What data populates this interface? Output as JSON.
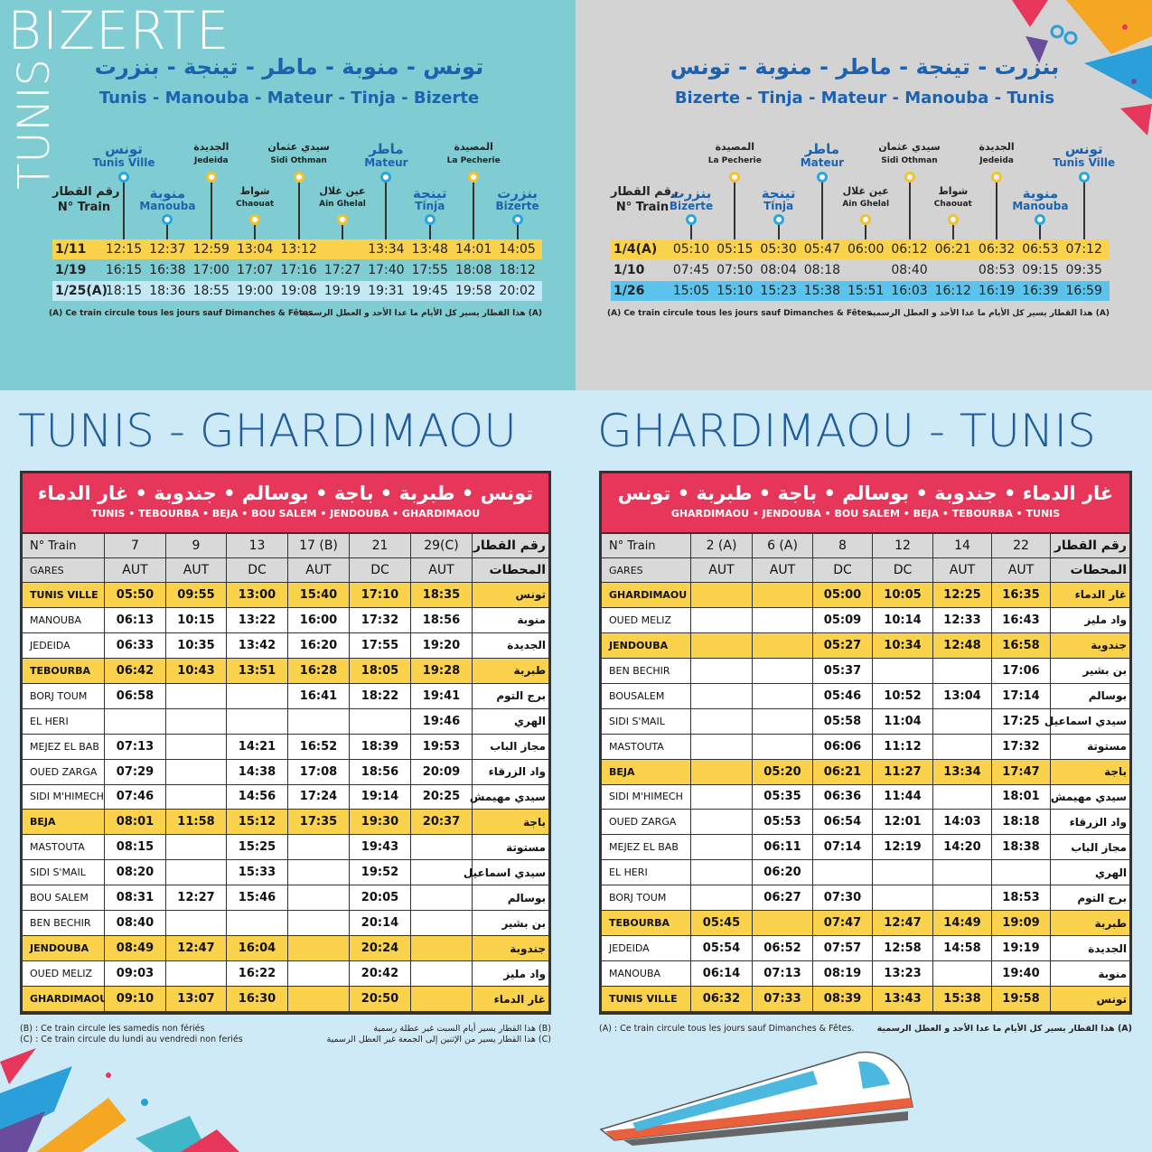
{
  "tunis_bizerte": {
    "title": "BIZERTE",
    "title_vertical": "TUNIS",
    "title_ar": "تونس - منوبة - ماطر - تينجة - بنزرت",
    "title_latin": "Tunis - Manouba - Mateur - Tinja - Bizerte",
    "train_label_ar": "رقم القطار",
    "train_label": "N° Train",
    "stations": [
      {
        "ar": "تونس",
        "name": "Tunis Ville"
      },
      {
        "ar": "منوبة",
        "name": "Manouba"
      },
      {
        "ar": "الجديدة",
        "name": "Jedeida"
      },
      {
        "ar": "شواط",
        "name": "Chaouat"
      },
      {
        "ar": "سيدي عثمان",
        "name": "Sidi Othman"
      },
      {
        "ar": "عين غلال",
        "name": "Ain Ghelal"
      },
      {
        "ar": "ماطر",
        "name": "Mateur"
      },
      {
        "ar": "تينجة",
        "name": "Tinja"
      },
      {
        "ar": "المصيدة",
        "name": "La Pecherie"
      },
      {
        "ar": "بنزرت",
        "name": "Bizerte"
      }
    ],
    "trains": [
      {
        "id": "1/11",
        "times": [
          "12:15",
          "12:37",
          "12:59",
          "13:04",
          "13:12",
          null,
          "13:34",
          "13:48",
          "14:01",
          "14:05"
        ]
      },
      {
        "id": "1/19",
        "times": [
          "16:15",
          "16:38",
          "17:00",
          "17:07",
          "17:16",
          "17:27",
          "17:40",
          "17:55",
          "18:08",
          "18:12"
        ]
      },
      {
        "id": "1/25(A)",
        "times": [
          "18:15",
          "18:36",
          "18:55",
          "19:00",
          "19:08",
          "19:19",
          "19:31",
          "19:45",
          "19:58",
          "20:02"
        ]
      }
    ],
    "note": "(A) Ce train circule tous les jours sauf Dimanches & Fêtes.",
    "note_ar": "(A) هذا القطار يسير كل الأيام ما عدا الأحد و العطل الرسمية"
  },
  "bizerte_tunis": {
    "title_ar": "بنزرت - تينجة - ماطر - منوبة - تونس",
    "title_latin": "Bizerte - Tinja - Mateur - Manouba - Tunis",
    "train_label_ar": "رقم القطار",
    "train_label": "N° Train",
    "stations": [
      {
        "ar": "بنزرت",
        "name": "Bizerte"
      },
      {
        "ar": "المصيدة",
        "name": "La Pecherie"
      },
      {
        "ar": "تينجة",
        "name": "Tinja"
      },
      {
        "ar": "ماطر",
        "name": "Mateur"
      },
      {
        "ar": "عين غلال",
        "name": "Ain Ghelal"
      },
      {
        "ar": "سيدي عثمان",
        "name": "Sidi Othman"
      },
      {
        "ar": "شواط",
        "name": "Chaouat"
      },
      {
        "ar": "الجديدة",
        "name": "Jedeida"
      },
      {
        "ar": "منوبة",
        "name": "Manouba"
      },
      {
        "ar": "تونس",
        "name": "Tunis Ville"
      }
    ],
    "trains": [
      {
        "id": "1/4(A)",
        "times": [
          "05:10",
          "05:15",
          "05:30",
          "05:47",
          "06:00",
          "06:12",
          "06:21",
          "06:32",
          "06:53",
          "07:12"
        ]
      },
      {
        "id": "1/10",
        "times": [
          "07:45",
          "07:50",
          "08:04",
          "08:18",
          null,
          "08:40",
          null,
          "08:53",
          "09:15",
          "09:35"
        ]
      },
      {
        "id": "1/26",
        "times": [
          "15:05",
          "15:10",
          "15:23",
          "15:38",
          "15:51",
          "16:03",
          "16:12",
          "16:19",
          "16:39",
          "16:59"
        ]
      }
    ],
    "note": "(A) Ce train circule tous les jours sauf Dimanches & Fêtes.",
    "note_ar": "(A) هذا القطار يسير كل الأيام ما عدا الأحد و العطل الرسمية"
  },
  "tunis_ghardimaou": {
    "title": "TUNIS - GHARDIMAOU",
    "header_ar": "تونس • طبربة • باجة • بوسالم • جندوبة • غار الدماء",
    "header_latin": "TUNIS • TEBOURBA • BEJA • BOU SALEM • JENDOUBA • GHARDIMAOU",
    "train_label": "N° Train",
    "train_label_ar": "رقم القطار",
    "gares_label": "GARES",
    "gares_label_ar": "المحطات",
    "trains": [
      "7",
      "9",
      "13",
      "17 (B)",
      "21",
      "29(C)"
    ],
    "types": [
      "AUT",
      "AUT",
      "DC",
      "AUT",
      "DC",
      "AUT"
    ],
    "rows": [
      {
        "name": "TUNIS VILLE",
        "times": [
          "05:50",
          "09:55",
          "13:00",
          "15:40",
          "17:10",
          "18:35"
        ],
        "name_ar": "تونس"
      },
      {
        "name": "MANOUBA",
        "times": [
          "06:13",
          "10:15",
          "13:22",
          "16:00",
          "17:32",
          "18:56"
        ],
        "name_ar": "منوبة"
      },
      {
        "name": "JEDEIDA",
        "times": [
          "06:33",
          "10:35",
          "13:42",
          "16:20",
          "17:55",
          "19:20"
        ],
        "name_ar": "الجديدة"
      },
      {
        "name": "TEBOURBA",
        "times": [
          "06:42",
          "10:43",
          "13:51",
          "16:28",
          "18:05",
          "19:28"
        ],
        "name_ar": "طبربة"
      },
      {
        "name": "BORJ TOUM",
        "times": [
          "06:58",
          null,
          null,
          "16:41",
          "18:22",
          "19:41"
        ],
        "name_ar": "برج التوم"
      },
      {
        "name": "EL HERI",
        "times": [
          null,
          null,
          null,
          null,
          null,
          "19:46"
        ],
        "name_ar": "الهري"
      },
      {
        "name": "MEJEZ EL BAB",
        "times": [
          "07:13",
          null,
          "14:21",
          "16:52",
          "18:39",
          "19:53"
        ],
        "name_ar": "مجاز الباب"
      },
      {
        "name": "OUED ZARGA",
        "times": [
          "07:29",
          null,
          "14:38",
          "17:08",
          "18:56",
          "20:09"
        ],
        "name_ar": "واد الزرقاء"
      },
      {
        "name": "SIDI M'HIMECH",
        "times": [
          "07:46",
          null,
          "14:56",
          "17:24",
          "19:14",
          "20:25"
        ],
        "name_ar": "سيدي مهيمش"
      },
      {
        "name": "BEJA",
        "times": [
          "08:01",
          "11:58",
          "15:12",
          "17:35",
          "19:30",
          "20:37"
        ],
        "name_ar": "باجة"
      },
      {
        "name": "MASTOUTA",
        "times": [
          "08:15",
          null,
          "15:25",
          null,
          "19:43",
          null
        ],
        "name_ar": "مستوتة"
      },
      {
        "name": "SIDI S'MAIL",
        "times": [
          "08:20",
          null,
          "15:33",
          null,
          "19:52",
          null
        ],
        "name_ar": "سيدي اسماعيل"
      },
      {
        "name": "BOU SALEM",
        "times": [
          "08:31",
          "12:27",
          "15:46",
          null,
          "20:05",
          null
        ],
        "name_ar": "بوسالم"
      },
      {
        "name": "BEN BECHIR",
        "times": [
          "08:40",
          null,
          null,
          null,
          "20:14",
          null
        ],
        "name_ar": "بن بشير"
      },
      {
        "name": "JENDOUBA",
        "times": [
          "08:49",
          "12:47",
          "16:04",
          null,
          "20:24",
          null
        ],
        "name_ar": "جندوبة"
      },
      {
        "name": "OUED MELIZ",
        "times": [
          "09:03",
          null,
          "16:22",
          null,
          "20:42",
          null
        ],
        "name_ar": "واد مليز"
      },
      {
        "name": "GHARDIMAOU",
        "times": [
          "09:10",
          "13:07",
          "16:30",
          null,
          "20:50",
          null
        ],
        "name_ar": "غار الدماء"
      }
    ],
    "notes": [
      "(B) : Ce train circule les samedis non fériés",
      "(C) : Ce train circule du lundi au vendredi non feriés"
    ],
    "notes_ar": [
      "(B) هذا القطار يسير أيام السبت غير عطلة رسمية",
      "(C) هذا القطار يسير من الإثنين إلى الجمعة غير العطل الرسمية"
    ]
  },
  "ghardimaou_tunis": {
    "title": "GHARDIMAOU - TUNIS",
    "header_ar": "غار الدماء • جندوبة • بوسالم • باجة • طبربة • تونس",
    "header_latin": "GHARDIMAOU • JENDOUBA • BOU SALEM • BEJA • TEBOURBA • TUNIS",
    "train_label": "N° Train",
    "train_label_ar": "رقم القطار",
    "gares_label": "GARES",
    "gares_label_ar": "المحطات",
    "trains": [
      "2 (A)",
      "6 (A)",
      "8",
      "12",
      "14",
      "22"
    ],
    "types": [
      "AUT",
      "AUT",
      "DC",
      "DC",
      "AUT",
      "AUT"
    ],
    "rows": [
      {
        "name": "GHARDIMAOU",
        "times": [
          null,
          null,
          "05:00",
          "10:05",
          "12:25",
          "16:35"
        ],
        "name_ar": "غار الدماء"
      },
      {
        "name": "OUED MELIZ",
        "times": [
          null,
          null,
          "05:09",
          "10:14",
          "12:33",
          "16:43"
        ],
        "name_ar": "واد مليز"
      },
      {
        "name": "JENDOUBA",
        "times": [
          null,
          null,
          "05:27",
          "10:34",
          "12:48",
          "16:58"
        ],
        "name_ar": "جندوبة"
      },
      {
        "name": "BEN BECHIR",
        "times": [
          null,
          null,
          "05:37",
          null,
          null,
          "17:06"
        ],
        "name_ar": "بن بشير"
      },
      {
        "name": "BOUSALEM",
        "times": [
          null,
          null,
          "05:46",
          "10:52",
          "13:04",
          "17:14"
        ],
        "name_ar": "بوسالم"
      },
      {
        "name": "SIDI S'MAIL",
        "times": [
          null,
          null,
          "05:58",
          "11:04",
          null,
          "17:25"
        ],
        "name_ar": "سيدي اسماعيل"
      },
      {
        "name": "MASTOUTA",
        "times": [
          null,
          null,
          "06:06",
          "11:12",
          null,
          "17:32"
        ],
        "name_ar": "مستوتة"
      },
      {
        "name": "BEJA",
        "times": [
          null,
          "05:20",
          "06:21",
          "11:27",
          "13:34",
          "17:47"
        ],
        "name_ar": "باجة"
      },
      {
        "name": "SIDI M'HIMECH",
        "times": [
          null,
          "05:35",
          "06:36",
          "11:44",
          null,
          "18:01"
        ],
        "name_ar": "سيدي مهيمش"
      },
      {
        "name": "OUED ZARGA",
        "times": [
          null,
          "05:53",
          "06:54",
          "12:01",
          "14:03",
          "18:18"
        ],
        "name_ar": "واد الزرقاء"
      },
      {
        "name": "MEJEZ EL BAB",
        "times": [
          null,
          "06:11",
          "07:14",
          "12:19",
          "14:20",
          "18:38"
        ],
        "name_ar": "مجاز الباب"
      },
      {
        "name": "EL HERI",
        "times": [
          null,
          "06:20",
          null,
          null,
          null,
          null
        ],
        "name_ar": "الهري"
      },
      {
        "name": "BORJ TOUM",
        "times": [
          null,
          "06:27",
          "07:30",
          null,
          null,
          "18:53"
        ],
        "name_ar": "برج التوم"
      },
      {
        "name": "TEBOURBA",
        "times": [
          "05:45",
          null,
          "07:47",
          "12:47",
          "14:49",
          "19:09"
        ],
        "name_ar": "طبربة"
      },
      {
        "name": "JEDEIDA",
        "times": [
          "05:54",
          "06:52",
          "07:57",
          "12:58",
          "14:58",
          "19:19"
        ],
        "name_ar": "الجديدة"
      },
      {
        "name": "MANOUBA",
        "times": [
          "06:14",
          "07:13",
          "08:19",
          "13:23",
          null,
          "19:40"
        ],
        "name_ar": "منوبة"
      },
      {
        "name": "TUNIS VILLE",
        "times": [
          "06:32",
          "07:33",
          "08:39",
          "13:43",
          "15:38",
          "19:58"
        ],
        "name_ar": "تونس"
      }
    ],
    "notes": [
      "(A) : Ce train circule tous les jours sauf Dimanches & Fêtes."
    ],
    "notes_ar": [
      "(A) هذا القطار يسير كل الأيام ما عدا الأحد و العطل الرسمية"
    ]
  }
}
